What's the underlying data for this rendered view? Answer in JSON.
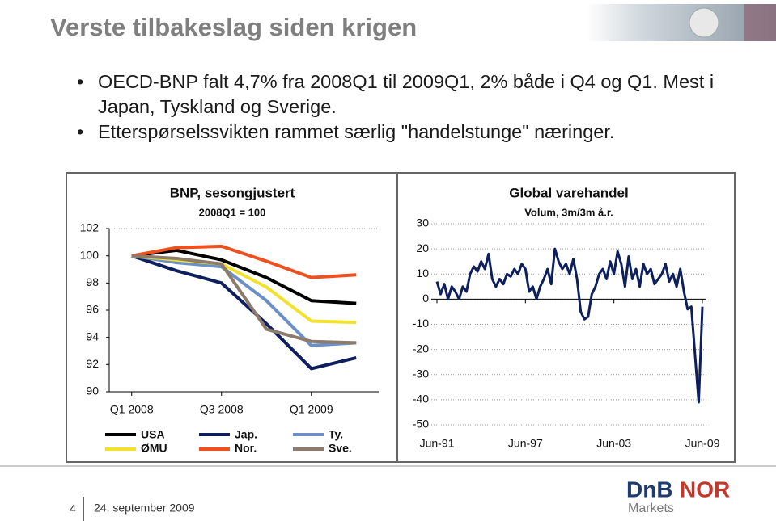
{
  "slide": {
    "title": "Verste tilbakeslag siden krigen",
    "bullets": [
      "OECD-BNP falt 4,7% fra 2008Q1 til 2009Q1, 2% både i Q4 og Q1. Mest i Japan, Tyskland og Sverige.",
      "Etterspørselssvikten rammet særlig \"handelstunge\" næringer."
    ],
    "page_number": "4",
    "date": "24. september 2009",
    "logo": {
      "brand_1": "DnB",
      "brand_2": "NOR",
      "sub": "Markets"
    }
  },
  "chart_data": [
    {
      "type": "line",
      "title": "BNP, sesongjustert",
      "subtitle": "2008Q1 = 100",
      "categories": [
        "Q1 2008",
        null,
        "Q3 2008",
        null,
        "Q1 2009",
        null
      ],
      "ylim": [
        90,
        102
      ],
      "yticks": [
        90,
        92,
        94,
        96,
        98,
        100,
        102
      ],
      "grid": false,
      "legend": "bottom",
      "series": [
        {
          "name": "USA",
          "color": "#000000",
          "values": [
            100,
            100.4,
            99.7,
            98.4,
            96.7,
            96.5
          ]
        },
        {
          "name": "Jap.",
          "color": "#0d1f5c",
          "values": [
            100,
            98.9,
            98.0,
            95.0,
            91.7,
            92.5
          ]
        },
        {
          "name": "Ty.",
          "color": "#6b8fc7",
          "values": [
            100,
            99.5,
            99.2,
            96.7,
            93.4,
            93.6
          ]
        },
        {
          "name": "ØMU",
          "color": "#f2e22c",
          "values": [
            100,
            99.7,
            99.4,
            97.7,
            95.2,
            95.1
          ]
        },
        {
          "name": "Nor.",
          "color": "#f0501e",
          "values": [
            100,
            100.6,
            100.7,
            99.6,
            98.4,
            98.6
          ]
        },
        {
          "name": "Sve.",
          "color": "#8c7a6b",
          "values": [
            100,
            99.8,
            99.4,
            94.6,
            93.7,
            93.6
          ]
        }
      ]
    },
    {
      "type": "line",
      "title": "Global varehandel",
      "subtitle": "Volum, 3m/3m å.r.",
      "categories": [
        "Jun-91",
        null,
        null,
        null,
        null,
        null,
        null,
        null,
        null,
        null,
        null,
        null,
        null,
        null,
        null,
        null,
        null,
        null,
        null,
        null,
        null,
        null,
        null,
        null,
        "Jun-97",
        null,
        null,
        null,
        null,
        null,
        null,
        null,
        null,
        null,
        null,
        null,
        null,
        null,
        null,
        null,
        null,
        null,
        null,
        null,
        null,
        null,
        null,
        null,
        "Jun-03",
        null,
        null,
        null,
        null,
        null,
        null,
        null,
        null,
        null,
        null,
        null,
        null,
        null,
        null,
        null,
        null,
        null,
        null,
        null,
        null,
        null,
        null,
        null,
        "Jun-09"
      ],
      "ylim": [
        -50,
        30
      ],
      "yticks": [
        -50,
        -40,
        -30,
        -20,
        -10,
        0,
        10,
        20,
        30
      ],
      "grid": true,
      "color": "#0d1f5c",
      "values": [
        7,
        2,
        6,
        0,
        5,
        3,
        0,
        5,
        3,
        10,
        13,
        11,
        15,
        12,
        18,
        8,
        5,
        8,
        6,
        10,
        9,
        12,
        10,
        14,
        12,
        3,
        5,
        0,
        5,
        8,
        12,
        6,
        20,
        15,
        12,
        14,
        10,
        16,
        8,
        -5,
        -8,
        -7,
        2,
        5,
        10,
        12,
        8,
        15,
        10,
        19,
        14,
        5,
        17,
        8,
        12,
        5,
        14,
        10,
        12,
        6,
        8,
        10,
        14,
        7,
        10,
        5,
        12,
        3,
        -4,
        -3,
        -22,
        -41,
        -3
      ]
    }
  ]
}
